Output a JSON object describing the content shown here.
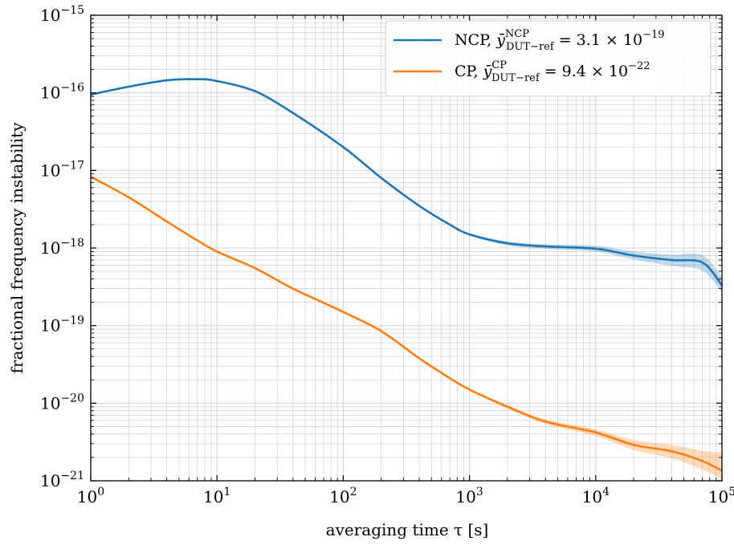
{
  "chart_data": {
    "type": "line",
    "title": "",
    "xlabel": "averaging time τ [s]",
    "ylabel": "fractional frequency instability",
    "xscale": "log",
    "yscale": "log",
    "xlim": [
      1,
      100000
    ],
    "ylim": [
      1e-21,
      1e-15
    ],
    "grid": true,
    "legend_position": "top-right",
    "x_ticks": [
      {
        "base": "10",
        "exp": "0"
      },
      {
        "base": "10",
        "exp": "1"
      },
      {
        "base": "10",
        "exp": "2"
      },
      {
        "base": "10",
        "exp": "3"
      },
      {
        "base": "10",
        "exp": "4"
      },
      {
        "base": "10",
        "exp": "5"
      }
    ],
    "y_ticks": [
      {
        "base": "10",
        "exp": "−21"
      },
      {
        "base": "10",
        "exp": "−20"
      },
      {
        "base": "10",
        "exp": "−19"
      },
      {
        "base": "10",
        "exp": "−18"
      },
      {
        "base": "10",
        "exp": "−17"
      },
      {
        "base": "10",
        "exp": "−16"
      },
      {
        "base": "10",
        "exp": "−15"
      }
    ],
    "series": [
      {
        "name": "NCP",
        "legend": {
          "prefix": "NCP, ",
          "symbol": "ȳ",
          "sup": "NCP",
          "sub": "DUT−ref",
          "value": " = 3.1 × 10",
          "exp": "−19"
        },
        "color": "#1f77b4",
        "x": [
          1,
          2,
          4,
          7,
          10,
          20,
          40,
          100,
          200,
          400,
          700,
          1000,
          2000,
          4000,
          10000,
          20000,
          40000,
          70000,
          100000
        ],
        "y": [
          9.5e-17,
          1.2e-16,
          1.45e-16,
          1.5e-16,
          1.42e-16,
          1.05e-16,
          5.5e-17,
          2e-17,
          8e-18,
          3.5e-18,
          2e-18,
          1.5e-18,
          1.15e-18,
          1.05e-18,
          9.8e-19,
          8e-19,
          7e-19,
          6.5e-19,
          3.3e-19
        ],
        "band_lower": [
          9.4e-17,
          1.19e-16,
          1.44e-16,
          1.49e-16,
          1.41e-16,
          1.04e-16,
          5.45e-17,
          1.98e-17,
          7.9e-18,
          3.45e-18,
          1.96e-18,
          1.45e-18,
          1.08e-18,
          9.8e-19,
          9e-19,
          7.1e-19,
          5.9e-19,
          5.1e-19,
          2.7e-19
        ],
        "band_upper": [
          9.6e-17,
          1.21e-16,
          1.46e-16,
          1.51e-16,
          1.43e-16,
          1.06e-16,
          5.55e-17,
          2.02e-17,
          8.1e-18,
          3.55e-18,
          2.04e-18,
          1.55e-18,
          1.22e-18,
          1.12e-18,
          1.07e-18,
          9e-19,
          8.2e-19,
          8.1e-19,
          4.2e-19
        ]
      },
      {
        "name": "CP",
        "legend": {
          "prefix": "CP, ",
          "symbol": "ȳ",
          "sup": "CP",
          "sub": "DUT−ref",
          "value": " = 9.4 × 10",
          "exp": "−22"
        },
        "color": "#ff7f0e",
        "x": [
          1,
          2,
          4,
          7,
          10,
          20,
          40,
          100,
          200,
          400,
          700,
          1000,
          2000,
          4000,
          10000,
          20000,
          40000,
          70000,
          100000
        ],
        "y": [
          8.3e-18,
          4.5e-18,
          2.2e-18,
          1.25e-18,
          9e-19,
          5.5e-19,
          3e-19,
          1.5e-19,
          8.5e-20,
          3.8e-20,
          2.1e-20,
          1.5e-20,
          9e-21,
          5.8e-21,
          4.2e-21,
          2.9e-21,
          2.4e-21,
          1.8e-21,
          1.35e-21
        ],
        "band_lower": [
          8.2e-18,
          4.45e-18,
          2.17e-18,
          1.23e-18,
          8.9e-19,
          5.45e-19,
          2.97e-19,
          1.48e-19,
          8.4e-20,
          3.75e-20,
          2.07e-20,
          1.47e-20,
          8.6e-21,
          5.4e-21,
          3.8e-21,
          2.5e-21,
          1.95e-21,
          1.4e-21,
          1.05e-21
        ],
        "band_upper": [
          8.4e-18,
          4.55e-18,
          2.23e-18,
          1.27e-18,
          9.1e-19,
          5.55e-19,
          3.03e-19,
          1.52e-19,
          8.6e-20,
          3.85e-20,
          2.13e-20,
          1.53e-20,
          9.4e-21,
          6.2e-21,
          4.6e-21,
          3.35e-21,
          2.9e-21,
          2.45e-21,
          2.3e-21
        ]
      }
    ]
  }
}
